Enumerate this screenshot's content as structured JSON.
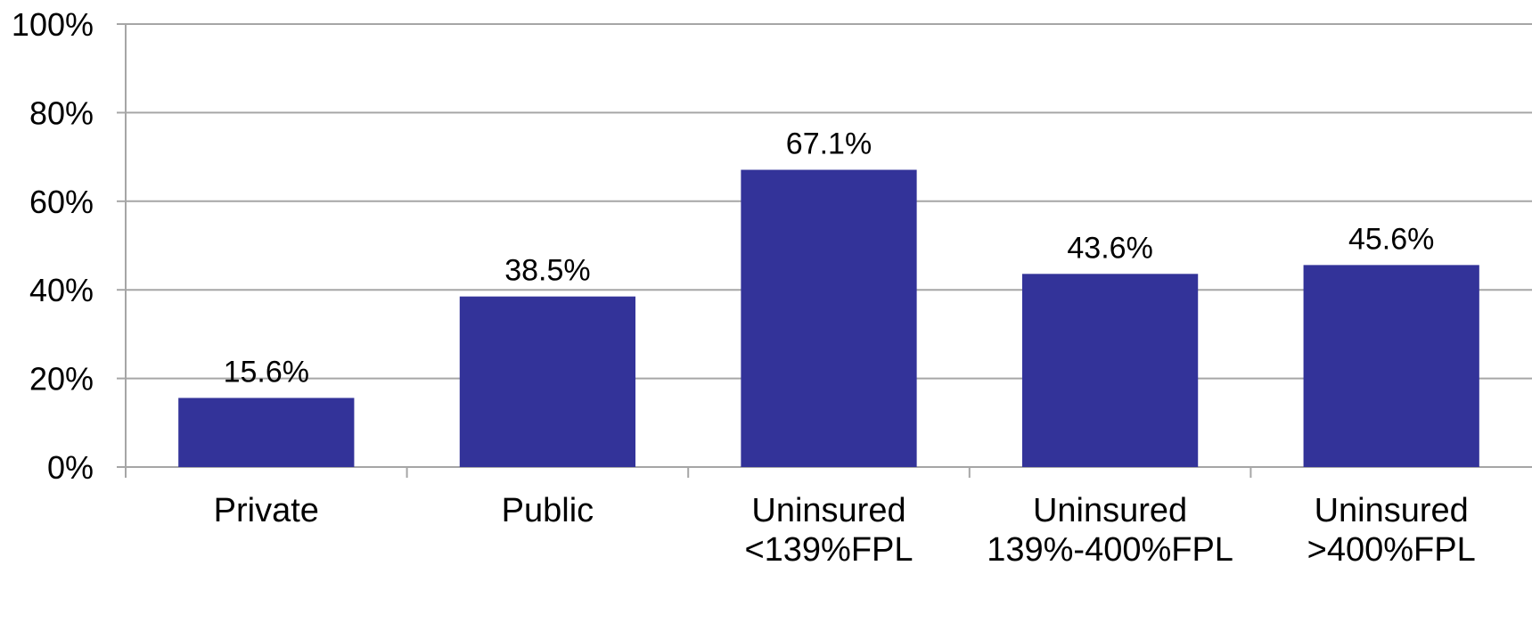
{
  "chart_data": {
    "type": "bar",
    "title": "",
    "xlabel": "",
    "ylabel": "",
    "categories": [
      [
        "Private"
      ],
      [
        "Public"
      ],
      [
        "Uninsured",
        "<139%FPL"
      ],
      [
        "Uninsured",
        "139%-400%FPL"
      ],
      [
        "Uninsured",
        ">400%FPL"
      ]
    ],
    "values": [
      15.6,
      38.5,
      67.1,
      43.6,
      45.6
    ],
    "data_labels": [
      "15.6%",
      "38.5%",
      "67.1%",
      "43.6%",
      "45.6%"
    ],
    "ylim": [
      0,
      100
    ],
    "yticks": [
      0,
      20,
      40,
      60,
      80,
      100
    ],
    "ytick_labels": [
      "0%",
      "20%",
      "40%",
      "60%",
      "80%",
      "100%"
    ],
    "grid": true,
    "legend": "none",
    "colors": {
      "bar": "#333399",
      "grid": "#a6a6a6",
      "axis": "#a6a6a6"
    }
  }
}
